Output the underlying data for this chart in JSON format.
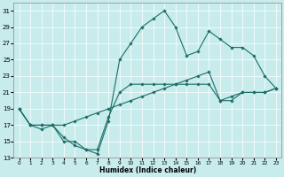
{
  "xlabel": "Humidex (Indice chaleur)",
  "xlim": [
    -0.5,
    23.5
  ],
  "ylim": [
    13,
    32
  ],
  "xticks": [
    0,
    1,
    2,
    3,
    4,
    5,
    6,
    7,
    8,
    9,
    10,
    11,
    12,
    13,
    14,
    15,
    16,
    17,
    18,
    19,
    20,
    21,
    22,
    23
  ],
  "yticks": [
    13,
    15,
    17,
    19,
    21,
    23,
    25,
    27,
    29,
    31
  ],
  "background_color": "#c8ecec",
  "grid_color": "#b8d8d8",
  "line_color": "#1a6e66",
  "line1_x": [
    0,
    1,
    2,
    3,
    4,
    5,
    6,
    7,
    8,
    9,
    10,
    11,
    12,
    13,
    14,
    15,
    16,
    17,
    18,
    19,
    20,
    21,
    22,
    23
  ],
  "line1_y": [
    19,
    17,
    17,
    17,
    15,
    15,
    14,
    14,
    18,
    21,
    22,
    22,
    22,
    22,
    22,
    22,
    22,
    22,
    20,
    20,
    21,
    21,
    21,
    21.5
  ],
  "line2_x": [
    0,
    1,
    2,
    3,
    4,
    5,
    6,
    7,
    8,
    9,
    10,
    11,
    12,
    13,
    14,
    15,
    16,
    17,
    18,
    19,
    20,
    21,
    22,
    23
  ],
  "line2_y": [
    19,
    17,
    16.5,
    17,
    15.5,
    14.5,
    14,
    13.5,
    17.5,
    25,
    27,
    29,
    30,
    31,
    29,
    25.5,
    26,
    28.5,
    27.5,
    26.5,
    26.5,
    25.5,
    23,
    21.5
  ],
  "line3_x": [
    0,
    1,
    2,
    3,
    4,
    5,
    6,
    7,
    8,
    9,
    10,
    11,
    12,
    13,
    14,
    15,
    16,
    17,
    18,
    19,
    20,
    21,
    22,
    23
  ],
  "line3_y": [
    19,
    17,
    17,
    17,
    17,
    17.5,
    18,
    18.5,
    19,
    19.5,
    20,
    20.5,
    21,
    21.5,
    22,
    22.5,
    23,
    23.5,
    20,
    20.5,
    21,
    21,
    21,
    21.5
  ]
}
